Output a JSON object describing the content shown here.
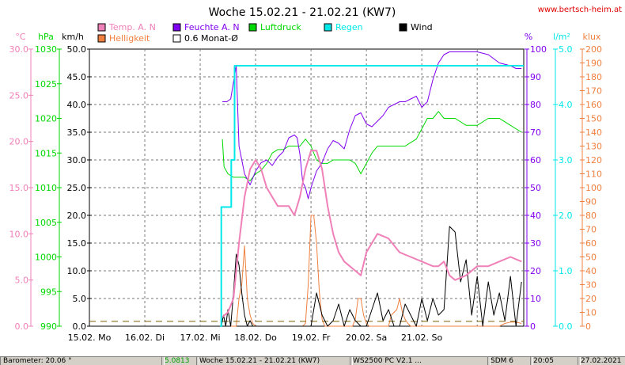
{
  "title": "Woche 15.02.21 - 21.02.21 (KW7)",
  "website": "www.bertsch-heim.at",
  "legend": [
    {
      "label": "Temp. A. N",
      "color": "#f080b8"
    },
    {
      "label": "Feuchte A. N",
      "color": "#8000f0"
    },
    {
      "label": "Luftdruck",
      "color": "#00d800"
    },
    {
      "label": "Regen",
      "color": "#00e8e8"
    },
    {
      "label": "Wind",
      "color": "#000000"
    },
    {
      "label": "Helligkeit",
      "color": "#f08040"
    },
    {
      "label": "0.6 Monat-Ø",
      "color": "#ffffff"
    }
  ],
  "units": {
    "temp": "°C",
    "press": "hPa",
    "wind": "km/h",
    "hum": "%",
    "rain": "l/m²",
    "lux": "klux"
  },
  "statusbar": [
    "Barometer: 20.06 °",
    "5.0813",
    "Woche 15.02.21 - 21.02.21 (KW7)",
    "WS2500 PC V2.1 ...",
    "SDM 6",
    "20:05",
    "27.02.2021"
  ],
  "chart_data": {
    "type": "line",
    "title": "Woche 15.02.21 - 21.02.21 (KW7)",
    "x_unit": "days since 15.02.21 00:00",
    "xlim": [
      0,
      7.84
    ],
    "x_tick_labels": [
      "15.02. Mo",
      "16.02. Di",
      "17.02. Mi",
      "18.02. Do",
      "19.02. Fr",
      "20.02. Sa",
      "21.02. So"
    ],
    "axes": {
      "temp": {
        "label": "°C",
        "color": "#f080b8",
        "min": 0,
        "max": 30,
        "ticks": [
          "0.0",
          "5.0",
          "10.0",
          "15.0",
          "20.0",
          "25.0",
          "30.0"
        ]
      },
      "press": {
        "label": "hPa",
        "color": "#00d800",
        "min": 990,
        "max": 1030,
        "ticks": [
          "990",
          "995",
          "1000",
          "1005",
          "1010",
          "1015",
          "1020",
          "1025",
          "1030"
        ]
      },
      "wind": {
        "label": "km/h",
        "color": "#000000",
        "min": 0,
        "max": 50,
        "ticks": [
          "0.0",
          "5.0",
          "10.0",
          "15.0",
          "20.0",
          "25.0",
          "30.0",
          "35.0",
          "40.0",
          "45.0",
          "50.0"
        ]
      },
      "hum": {
        "label": "%",
        "color": "#8000f0",
        "min": 0,
        "max": 100,
        "ticks": [
          "0",
          "10",
          "20",
          "30",
          "40",
          "50",
          "60",
          "70",
          "80",
          "90",
          "100"
        ]
      },
      "rain": {
        "label": "l/m²",
        "color": "#00e8e8",
        "min": 0,
        "max": 5,
        "ticks": [
          "0.0",
          "1.0",
          "2.0",
          "3.0",
          "4.0",
          "5.0"
        ]
      },
      "lux": {
        "label": "klux",
        "color": "#f08040",
        "min": 0,
        "max": 200,
        "ticks": [
          "0",
          "10",
          "20",
          "30",
          "40",
          "50",
          "60",
          "70",
          "80",
          "90",
          "100",
          "110",
          "120",
          "130",
          "140",
          "150",
          "160",
          "170",
          "180",
          "190",
          "200"
        ]
      }
    },
    "series": [
      {
        "name": "Temp. A. N",
        "axis": "temp",
        "color": "#f080b8",
        "width": 2,
        "x": [
          2.4,
          2.5,
          2.6,
          2.7,
          2.8,
          2.9,
          3.0,
          3.1,
          3.2,
          3.3,
          3.4,
          3.5,
          3.6,
          3.7,
          3.8,
          3.9,
          4.0,
          4.1,
          4.2,
          4.3,
          4.4,
          4.5,
          4.6,
          4.7,
          4.8,
          4.9,
          5.0,
          5.2,
          5.4,
          5.6,
          5.8,
          6.0,
          6.2,
          6.3,
          6.4,
          6.5,
          6.6,
          6.8,
          7.0,
          7.2,
          7.4,
          7.6,
          7.8
        ],
        "y": [
          1,
          1.5,
          3,
          9,
          14,
          17,
          18,
          17,
          15,
          14,
          13,
          13,
          13,
          12,
          14,
          17,
          19,
          19,
          17,
          13,
          10,
          8,
          7,
          6.5,
          6,
          5.5,
          8,
          10,
          9.5,
          8,
          7.5,
          7,
          6.5,
          6.5,
          7,
          5.5,
          5,
          5.5,
          6.5,
          6.5,
          7,
          7.5,
          7
        ]
      },
      {
        "name": "Feuchte A. N",
        "axis": "hum",
        "color": "#8000f0",
        "width": 1,
        "x": [
          2.4,
          2.48,
          2.55,
          2.6,
          2.65,
          2.7,
          2.75,
          2.8,
          2.9,
          3.0,
          3.1,
          3.2,
          3.3,
          3.4,
          3.5,
          3.6,
          3.7,
          3.75,
          3.8,
          3.85,
          3.9,
          3.95,
          4.0,
          4.1,
          4.2,
          4.3,
          4.4,
          4.5,
          4.6,
          4.7,
          4.8,
          4.9,
          5.0,
          5.1,
          5.2,
          5.3,
          5.4,
          5.5,
          5.6,
          5.7,
          5.8,
          5.9,
          6.0,
          6.1,
          6.2,
          6.3,
          6.4,
          6.5,
          6.6,
          6.8,
          7.0,
          7.2,
          7.4,
          7.6,
          7.7,
          7.8
        ],
        "y": [
          81,
          81,
          82,
          88,
          94,
          65,
          60,
          55,
          51,
          56,
          59,
          60,
          58,
          61,
          63,
          68,
          69,
          68,
          62,
          52,
          50,
          46,
          50,
          56,
          59,
          64,
          67,
          66,
          64,
          71,
          76,
          77,
          73,
          72,
          74,
          76,
          79,
          80,
          81,
          81,
          82,
          83,
          79,
          81,
          89,
          95,
          98,
          99,
          99,
          99,
          99,
          98,
          95,
          94,
          93,
          93
        ]
      },
      {
        "name": "Luftdruck",
        "axis": "press",
        "color": "#00d800",
        "width": 1,
        "x": [
          2.4,
          2.43,
          2.5,
          2.6,
          2.7,
          2.8,
          2.9,
          3.0,
          3.1,
          3.2,
          3.3,
          3.4,
          3.5,
          3.6,
          3.7,
          3.8,
          3.9,
          4.0,
          4.1,
          4.2,
          4.3,
          4.4,
          4.5,
          4.6,
          4.7,
          4.8,
          4.9,
          5.0,
          5.1,
          5.2,
          5.3,
          5.4,
          5.5,
          5.6,
          5.7,
          5.8,
          5.9,
          6.0,
          6.1,
          6.2,
          6.3,
          6.4,
          6.5,
          6.6,
          6.8,
          7.0,
          7.2,
          7.4,
          7.6,
          7.8
        ],
        "y": [
          1017,
          1013,
          1012,
          1011.5,
          1011.5,
          1011.5,
          1011,
          1012,
          1012.5,
          1013.5,
          1015,
          1015.5,
          1015.5,
          1016,
          1016,
          1016,
          1017,
          1016,
          1014,
          1013.5,
          1013.5,
          1014,
          1014,
          1014,
          1014,
          1013.5,
          1012,
          1013.5,
          1015,
          1016,
          1016,
          1016,
          1016,
          1016,
          1016,
          1016.5,
          1017,
          1018.5,
          1020,
          1020,
          1021,
          1020,
          1020,
          1020,
          1019,
          1019,
          1020,
          1020,
          1019,
          1018
        ]
      },
      {
        "name": "Regen",
        "axis": "rain",
        "color": "#00e8e8",
        "width": 2,
        "x": [
          2.36,
          2.38,
          2.38,
          2.56,
          2.56,
          2.62,
          2.62,
          7.84
        ],
        "y": [
          0,
          0,
          2.15,
          2.15,
          3.0,
          3.0,
          4.7,
          4.7
        ]
      },
      {
        "name": "Wind",
        "axis": "wind",
        "color": "#000000",
        "width": 1,
        "x": [
          2.38,
          2.42,
          2.46,
          2.5,
          2.55,
          2.6,
          2.65,
          2.7,
          2.75,
          2.8,
          2.85,
          2.9,
          2.95,
          3.0,
          3.1,
          3.2,
          3.3,
          3.4,
          3.5,
          3.6,
          3.7,
          3.8,
          3.9,
          4.0,
          4.1,
          4.2,
          4.3,
          4.4,
          4.5,
          4.6,
          4.7,
          4.8,
          4.9,
          5.0,
          5.1,
          5.2,
          5.3,
          5.4,
          5.5,
          5.6,
          5.7,
          5.8,
          5.9,
          6.0,
          6.1,
          6.2,
          6.3,
          6.4,
          6.5,
          6.6,
          6.7,
          6.8,
          6.9,
          7.0,
          7.1,
          7.2,
          7.3,
          7.4,
          7.5,
          7.6,
          7.7,
          7.8
        ],
        "y": [
          0,
          2,
          0,
          3,
          0,
          6,
          13,
          11,
          6,
          2,
          0,
          1,
          0,
          0,
          0,
          0,
          0,
          0,
          0,
          0,
          0,
          0,
          0,
          0,
          6,
          2,
          0,
          1,
          4,
          0,
          3,
          1,
          0,
          0,
          3,
          6,
          1,
          3,
          0,
          0,
          4,
          2,
          0,
          5,
          1,
          5,
          2,
          3,
          18,
          17,
          8,
          12,
          2,
          9,
          0,
          8,
          2,
          6,
          1,
          9,
          0,
          8
        ]
      },
      {
        "name": "Helligkeit",
        "axis": "lux",
        "color": "#f08040",
        "width": 1,
        "x": [
          2.55,
          2.6,
          2.65,
          2.7,
          2.75,
          2.8,
          2.85,
          2.9,
          2.95,
          3.0,
          3.05,
          3.1,
          3.15,
          3.2,
          3.25,
          3.3,
          3.35,
          3.4,
          3.45,
          3.5,
          3.6,
          3.7,
          3.75,
          3.8,
          3.85,
          3.9,
          3.95,
          4.0,
          4.05,
          4.1,
          4.15,
          4.2,
          4.25,
          4.3,
          4.35,
          4.4,
          4.45,
          4.5,
          4.6,
          4.7,
          4.75,
          4.8,
          4.85,
          4.9,
          4.95,
          5.0,
          5.05,
          5.1,
          5.15,
          5.2,
          5.3,
          5.4,
          5.45,
          5.5,
          5.55,
          5.6,
          5.65,
          5.7,
          5.75,
          5.8,
          5.9,
          6.0,
          6.05,
          6.1,
          6.2,
          6.3,
          6.5,
          6.6,
          6.7,
          6.8,
          6.9,
          7.0,
          7.1,
          7.2,
          7.3,
          7.4,
          7.5,
          7.6,
          7.7,
          7.8
        ],
        "y": [
          0,
          0,
          0,
          20,
          30,
          58,
          20,
          8,
          2,
          0,
          0,
          0,
          0,
          0,
          0,
          0,
          0,
          0,
          0,
          0,
          0,
          0,
          0,
          0,
          0,
          2,
          30,
          80,
          80,
          60,
          25,
          5,
          0,
          0,
          0,
          0,
          0,
          0,
          0,
          0,
          0,
          5,
          20,
          20,
          8,
          2,
          0,
          0,
          0,
          0,
          0,
          0,
          8,
          10,
          12,
          20,
          10,
          5,
          2,
          0,
          0,
          0,
          0,
          0,
          0,
          0,
          0,
          0,
          0,
          0,
          0,
          0,
          0,
          0,
          0,
          0,
          2,
          3,
          3,
          2
        ]
      },
      {
        "name": "0.6 Monat-Ø",
        "axis": "lux",
        "color": "#806000",
        "width": 1,
        "dashed": true,
        "x": [
          0,
          7.84
        ],
        "y": [
          3.5,
          3.5
        ]
      }
    ]
  }
}
